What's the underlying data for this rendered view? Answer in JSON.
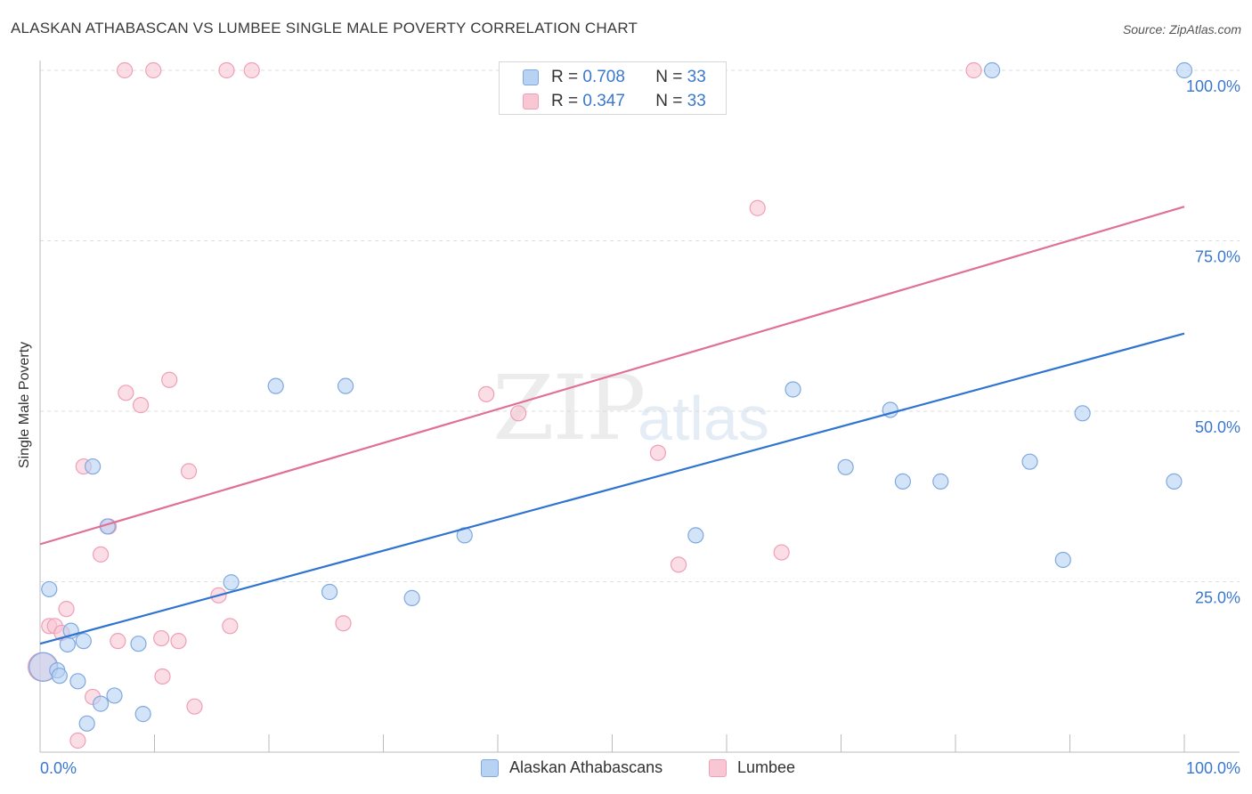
{
  "header": {
    "title": "ALASKAN ATHABASCAN VS LUMBEE SINGLE MALE POVERTY CORRELATION CHART",
    "source": "Source: ZipAtlas.com"
  },
  "watermark": {
    "zip": "ZIP",
    "atlas": "atlas"
  },
  "legend": {
    "rows": [
      {
        "r_label": "R =",
        "r_value": "0.708",
        "n_label": "N =",
        "n_value": "33"
      },
      {
        "r_label": "R =",
        "r_value": "0.347",
        "n_label": "N =",
        "n_value": "33"
      }
    ]
  },
  "bottom_legend": {
    "series_a": "Alaskan Athabascans",
    "series_b": "Lumbee"
  },
  "colors": {
    "blue_fill": "#b8d2f3",
    "blue_stroke": "#7fa9de",
    "blue_line": "#2f74d0",
    "pink_fill": "#f9c6d4",
    "pink_stroke": "#ef9fb6",
    "pink_line": "#e07095",
    "tick_label": "#3a78d0",
    "grid": "#dddddd"
  },
  "chart_data": {
    "type": "scatter",
    "title": "ALASKAN ATHABASCAN VS LUMBEE SINGLE MALE POVERTY CORRELATION CHART",
    "xlabel": "",
    "ylabel": "Single Male Poverty",
    "xlim": [
      0,
      100
    ],
    "ylim": [
      0,
      100
    ],
    "x_tick_labels": [
      "0.0%",
      "100.0%"
    ],
    "y_ticks": [
      25,
      50,
      75,
      100
    ],
    "y_tick_labels": [
      "25.0%",
      "50.0%",
      "75.0%",
      "100.0%"
    ],
    "grid": true,
    "legend_position": "top-center",
    "series": [
      {
        "name": "Alaskan Athabascans",
        "r": 0.708,
        "n": 33,
        "trend": {
          "x": [
            0,
            100
          ],
          "y": [
            15.9,
            61.4
          ]
        },
        "points": [
          {
            "x": 0.3,
            "y": 12.5,
            "big": true
          },
          {
            "x": 0.8,
            "y": 23.9
          },
          {
            "x": 1.5,
            "y": 12.0
          },
          {
            "x": 1.7,
            "y": 11.2
          },
          {
            "x": 2.4,
            "y": 15.8
          },
          {
            "x": 2.7,
            "y": 17.8
          },
          {
            "x": 3.3,
            "y": 10.4
          },
          {
            "x": 3.8,
            "y": 16.3
          },
          {
            "x": 4.1,
            "y": 4.2
          },
          {
            "x": 4.6,
            "y": 41.9
          },
          {
            "x": 5.3,
            "y": 7.1
          },
          {
            "x": 5.9,
            "y": 33.1
          },
          {
            "x": 6.5,
            "y": 8.3
          },
          {
            "x": 8.6,
            "y": 15.9
          },
          {
            "x": 9.0,
            "y": 5.6
          },
          {
            "x": 16.7,
            "y": 24.9
          },
          {
            "x": 20.6,
            "y": 53.7
          },
          {
            "x": 25.3,
            "y": 23.5
          },
          {
            "x": 26.7,
            "y": 53.7
          },
          {
            "x": 32.5,
            "y": 22.6
          },
          {
            "x": 37.1,
            "y": 31.8
          },
          {
            "x": 57.3,
            "y": 31.8
          },
          {
            "x": 65.8,
            "y": 53.2
          },
          {
            "x": 70.4,
            "y": 41.8
          },
          {
            "x": 74.3,
            "y": 50.2
          },
          {
            "x": 75.4,
            "y": 39.7
          },
          {
            "x": 78.7,
            "y": 39.7
          },
          {
            "x": 83.2,
            "y": 100.0
          },
          {
            "x": 86.5,
            "y": 42.6
          },
          {
            "x": 89.4,
            "y": 28.2
          },
          {
            "x": 91.1,
            "y": 49.7
          },
          {
            "x": 99.1,
            "y": 39.7
          },
          {
            "x": 100.0,
            "y": 100.0
          }
        ]
      },
      {
        "name": "Lumbee",
        "r": 0.347,
        "n": 33,
        "trend": {
          "x": [
            0,
            100
          ],
          "y": [
            30.5,
            80.0
          ]
        },
        "points": [
          {
            "x": 0.2,
            "y": 12.5,
            "big": true
          },
          {
            "x": 0.8,
            "y": 18.5
          },
          {
            "x": 1.3,
            "y": 18.5
          },
          {
            "x": 1.9,
            "y": 17.5
          },
          {
            "x": 2.3,
            "y": 21.0
          },
          {
            "x": 3.3,
            "y": 1.7
          },
          {
            "x": 3.8,
            "y": 41.9
          },
          {
            "x": 4.6,
            "y": 8.1
          },
          {
            "x": 5.3,
            "y": 29.0
          },
          {
            "x": 6.0,
            "y": 33.1
          },
          {
            "x": 6.8,
            "y": 16.3
          },
          {
            "x": 7.4,
            "y": 100.0
          },
          {
            "x": 7.5,
            "y": 52.7
          },
          {
            "x": 8.8,
            "y": 50.9
          },
          {
            "x": 9.9,
            "y": 100.0
          },
          {
            "x": 10.6,
            "y": 16.7
          },
          {
            "x": 10.7,
            "y": 11.1
          },
          {
            "x": 11.3,
            "y": 54.6
          },
          {
            "x": 12.1,
            "y": 16.3
          },
          {
            "x": 13.0,
            "y": 41.2
          },
          {
            "x": 13.5,
            "y": 6.7
          },
          {
            "x": 15.6,
            "y": 23.0
          },
          {
            "x": 16.3,
            "y": 100.0
          },
          {
            "x": 16.6,
            "y": 18.5
          },
          {
            "x": 18.5,
            "y": 100.0
          },
          {
            "x": 26.5,
            "y": 18.9
          },
          {
            "x": 39.0,
            "y": 52.5
          },
          {
            "x": 41.8,
            "y": 49.7
          },
          {
            "x": 54.0,
            "y": 43.9
          },
          {
            "x": 55.8,
            "y": 27.5
          },
          {
            "x": 62.7,
            "y": 79.8
          },
          {
            "x": 64.8,
            "y": 29.3
          },
          {
            "x": 81.6,
            "y": 100.0
          }
        ]
      }
    ]
  }
}
